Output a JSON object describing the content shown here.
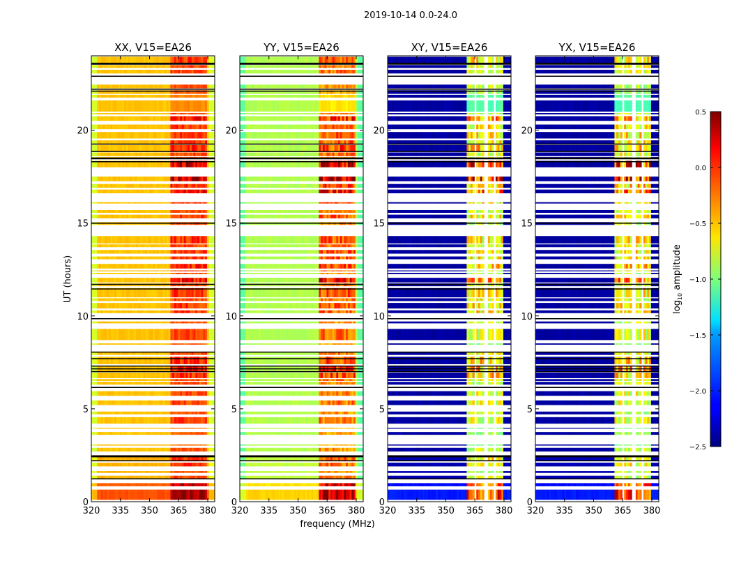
{
  "chart_data": {
    "type": "heatmap",
    "title": "2019-10-14 0.0-24.0",
    "xlabel": "frequency (MHz)",
    "ylabel": "UT (hours)",
    "xlim": [
      320,
      383.6
    ],
    "ylim": [
      0,
      24
    ],
    "xticks": [
      320,
      335,
      350,
      365,
      380
    ],
    "yticks": [
      0,
      5,
      10,
      15,
      20
    ],
    "panels": [
      {
        "title": "XX, V15=EA26",
        "base": -0.45,
        "rfi_gain": 0.45,
        "rfi_floor": 0.15,
        "edge": -0.3,
        "gap_columns": false
      },
      {
        "title": "YY, V15=EA26",
        "base": -0.85,
        "rfi_gain": 0.75,
        "rfi_floor": 0.25,
        "edge": -0.25,
        "gap_columns": false
      },
      {
        "title": "XY, V15=EA26",
        "base": -2.4,
        "rfi_gain": 1.0,
        "rfi_floor": 1.2,
        "edge": 0,
        "gap_columns": true
      },
      {
        "title": "YX, V15=EA26",
        "base": -2.4,
        "rfi_gain": 1.0,
        "rfi_floor": 1.2,
        "edge": 0,
        "gap_columns": true
      }
    ],
    "rfi_band_mhz": [
      360.5,
      379.7
    ],
    "gap_columns_mhz": [
      365.0,
      370.7,
      375.4
    ],
    "segments_hours": [
      [
        0.1,
        0.65,
        0.35,
        0.8
      ],
      [
        0.83,
        1.0,
        0.3,
        0.7
      ],
      [
        1.25,
        1.4,
        0.05,
        0.4
      ],
      [
        1.55,
        1.65,
        0.05,
        0.3
      ],
      [
        1.9,
        2.1,
        0.05,
        0.5
      ],
      [
        2.2,
        2.5,
        0.05,
        0.5
      ],
      [
        2.7,
        2.9,
        0.0,
        0.4
      ],
      [
        3.02,
        3.08,
        0,
        0.2
      ],
      [
        3.6,
        3.75,
        0,
        0.3
      ],
      [
        3.93,
        3.98,
        0,
        0.2
      ],
      [
        4.2,
        4.55,
        0,
        0.5
      ],
      [
        4.7,
        4.85,
        0,
        0.4
      ],
      [
        5.2,
        5.45,
        0,
        0.5
      ],
      [
        5.7,
        5.95,
        0,
        0.5
      ],
      [
        6.3,
        6.45,
        0,
        0.4
      ],
      [
        6.5,
        6.6,
        0,
        0.5
      ],
      [
        6.65,
        6.95,
        0,
        0.7
      ],
      [
        7.0,
        7.3,
        0,
        0.8
      ],
      [
        7.4,
        7.8,
        0,
        0.7
      ],
      [
        7.9,
        8.05,
        0,
        0.5
      ],
      [
        8.45,
        8.52,
        0,
        0.3
      ],
      [
        8.7,
        9.3,
        0,
        0.5
      ],
      [
        9.6,
        9.7,
        0,
        0.4
      ],
      [
        10.15,
        10.3,
        0,
        0.6
      ],
      [
        10.4,
        10.7,
        0,
        0.6
      ],
      [
        10.8,
        10.95,
        0,
        0.5
      ],
      [
        11.0,
        11.5,
        0,
        0.6
      ],
      [
        11.6,
        11.75,
        0,
        0.5
      ],
      [
        11.8,
        12.05,
        0,
        0.9
      ],
      [
        12.25,
        12.32,
        0,
        0.4
      ],
      [
        12.4,
        12.45,
        0,
        0.5
      ],
      [
        12.55,
        12.8,
        0,
        0.7
      ],
      [
        13.05,
        13.2,
        0,
        0.6
      ],
      [
        13.35,
        13.55,
        0,
        0.6
      ],
      [
        13.7,
        13.85,
        0,
        0.5
      ],
      [
        13.9,
        14.3,
        0,
        0.6
      ],
      [
        14.9,
        15.05,
        0,
        0.4
      ],
      [
        15.25,
        15.45,
        0,
        0.6
      ],
      [
        15.55,
        15.7,
        0,
        0.4
      ],
      [
        16.05,
        16.12,
        0,
        0.6
      ],
      [
        16.6,
        16.8,
        0,
        0.9
      ],
      [
        16.9,
        17.1,
        0,
        0.7
      ],
      [
        17.25,
        17.5,
        0,
        1.4
      ],
      [
        18.0,
        18.35,
        0,
        1.2
      ],
      [
        18.45,
        18.55,
        0,
        0.5
      ],
      [
        18.6,
        18.8,
        0,
        0.5
      ],
      [
        18.85,
        19.2,
        0,
        0.7
      ],
      [
        19.25,
        19.45,
        0,
        0.6
      ],
      [
        19.55,
        19.9,
        0,
        0.6
      ],
      [
        20.05,
        20.3,
        0,
        0.6
      ],
      [
        20.5,
        20.75,
        0,
        0.8
      ],
      [
        20.85,
        20.92,
        0,
        0.4
      ],
      [
        21.0,
        21.6,
        0,
        0.05
      ],
      [
        21.75,
        21.9,
        0,
        0.1
      ],
      [
        21.95,
        22.15,
        0,
        0.3
      ],
      [
        22.25,
        22.45,
        0,
        0.4
      ],
      [
        23.05,
        23.25,
        0,
        0.5
      ],
      [
        23.35,
        23.5,
        0,
        0.5
      ],
      [
        23.6,
        23.95,
        0,
        0.6
      ]
    ],
    "flag_lines_hours": [
      1.23,
      2.2,
      2.42,
      2.47,
      6.15,
      7.0,
      7.15,
      7.3,
      7.7,
      8.05,
      9.85,
      11.45,
      11.7,
      14.99,
      18.3,
      18.46,
      18.5,
      18.85,
      19.25,
      22.1,
      22.2,
      22.9,
      23.55,
      23.6
    ],
    "colorbar": {
      "label_main": "log",
      "label_sub": "10",
      "label_rest": " amplitude",
      "range": [
        -2.5,
        0.5
      ],
      "ticks": [
        "0.5",
        "0.0",
        "−0.5",
        "−1.0",
        "−1.5",
        "−2.0",
        "−2.5"
      ],
      "tick_values": [
        0.5,
        0.0,
        -0.5,
        -1.0,
        -1.5,
        -2.0,
        -2.5
      ],
      "colormap": "jet"
    }
  }
}
